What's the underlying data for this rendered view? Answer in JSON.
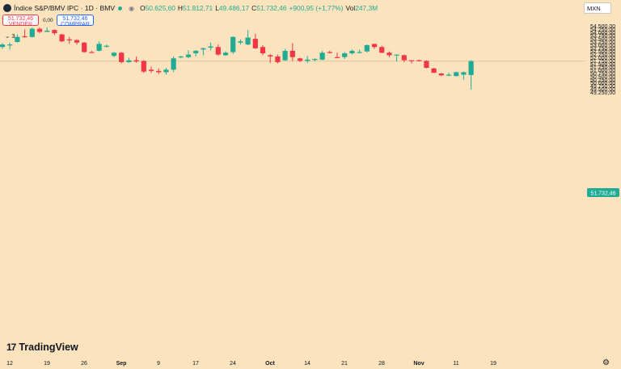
{
  "header": {
    "symbol": "Índice S&P/BMV IPC · 1D · BMV",
    "open_label": "O",
    "open": "50.625,60",
    "high_label": "H",
    "high": "51.812,71",
    "low_label": "L",
    "low": "49.486,17",
    "close_label": "C",
    "close": "51.732,46",
    "change": "+900,95 (+1,77%)",
    "volume_label": "Vol",
    "volume": "247,3M"
  },
  "trade": {
    "sell_price": "51.732,46",
    "sell_label": "VENDER",
    "spread": "0,00",
    "buy_price": "51.732,46",
    "buy_label": "COMPRAR"
  },
  "indicators": {
    "toggle": "⌄ 3"
  },
  "currency": "MXN",
  "brand": "TradingView",
  "colors": {
    "up": "#22ab94",
    "down": "#f23645",
    "background": "#fae3bd"
  },
  "chart_data": {
    "type": "candlestick",
    "y_range": [
      49200,
      54800
    ],
    "y_ticks": [
      "54.500,00",
      "54.250,00",
      "54.000,00",
      "53.750,00",
      "53.500,00",
      "53.250,00",
      "53.000,00",
      "52.750,00",
      "52.500,00",
      "52.250,00",
      "52.000,00",
      "51.750,00",
      "51.500,00",
      "51.250,00",
      "51.000,00",
      "50.750,00",
      "50.500,00",
      "50.250,00",
      "50.000,00",
      "49.750,00",
      "49.500,00",
      "49.250,00"
    ],
    "y_tick_values": [
      54500,
      54250,
      54000,
      53750,
      53500,
      53250,
      53000,
      52750,
      52500,
      52250,
      52000,
      51750,
      51500,
      51250,
      51000,
      50750,
      50500,
      50250,
      50000,
      49750,
      49500,
      49250
    ],
    "x_ticks": [
      "12",
      "19",
      "26",
      "Sep",
      "9",
      "17",
      "24",
      "Oct",
      "14",
      "21",
      "28",
      "Nov",
      "11",
      "19"
    ],
    "x_tick_index": [
      0,
      5,
      10,
      15,
      20,
      25,
      30,
      35,
      40,
      45,
      50,
      55,
      60,
      65
    ],
    "x_tick_bold": [
      "Sep",
      "Oct",
      "Nov"
    ],
    "last_price": 51732.46,
    "last_price_label": "51.732,46",
    "candles": [
      {
        "o": 52850,
        "h": 53150,
        "l": 52700,
        "c": 53050
      },
      {
        "o": 53020,
        "h": 53200,
        "l": 52650,
        "c": 53050
      },
      {
        "o": 53250,
        "h": 53850,
        "l": 53200,
        "c": 53650
      },
      {
        "o": 53700,
        "h": 54250,
        "l": 53600,
        "c": 53650
      },
      {
        "o": 53650,
        "h": 54400,
        "l": 53600,
        "c": 54300
      },
      {
        "o": 54300,
        "h": 54400,
        "l": 53950,
        "c": 54050
      },
      {
        "o": 54050,
        "h": 54400,
        "l": 54050,
        "c": 54150
      },
      {
        "o": 54200,
        "h": 54250,
        "l": 53800,
        "c": 53950
      },
      {
        "o": 53850,
        "h": 53900,
        "l": 53250,
        "c": 53300
      },
      {
        "o": 53450,
        "h": 53650,
        "l": 53100,
        "c": 53400
      },
      {
        "o": 53400,
        "h": 53450,
        "l": 53050,
        "c": 53200
      },
      {
        "o": 53200,
        "h": 53250,
        "l": 52400,
        "c": 52450
      },
      {
        "o": 52450,
        "h": 52550,
        "l": 52400,
        "c": 52400
      },
      {
        "o": 52550,
        "h": 53300,
        "l": 52500,
        "c": 53100
      },
      {
        "o": 52950,
        "h": 53050,
        "l": 52800,
        "c": 52950
      },
      {
        "o": 52150,
        "h": 52450,
        "l": 52050,
        "c": 52400
      },
      {
        "o": 52400,
        "h": 52450,
        "l": 51550,
        "c": 51650
      },
      {
        "o": 51650,
        "h": 52000,
        "l": 51600,
        "c": 51800
      },
      {
        "o": 51800,
        "h": 52100,
        "l": 51600,
        "c": 51700
      },
      {
        "o": 51750,
        "h": 51800,
        "l": 50800,
        "c": 50900
      },
      {
        "o": 51050,
        "h": 51300,
        "l": 50800,
        "c": 50950
      },
      {
        "o": 50950,
        "h": 51150,
        "l": 50700,
        "c": 50850
      },
      {
        "o": 50850,
        "h": 51200,
        "l": 50650,
        "c": 51050
      },
      {
        "o": 51050,
        "h": 52100,
        "l": 50850,
        "c": 51950
      },
      {
        "o": 52050,
        "h": 52150,
        "l": 51950,
        "c": 52100
      },
      {
        "o": 52050,
        "h": 52600,
        "l": 51950,
        "c": 52250
      },
      {
        "o": 52350,
        "h": 52600,
        "l": 52100,
        "c": 52550
      },
      {
        "o": 52650,
        "h": 52800,
        "l": 52200,
        "c": 52750
      },
      {
        "o": 52800,
        "h": 53200,
        "l": 52600,
        "c": 52900
      },
      {
        "o": 52850,
        "h": 53050,
        "l": 52150,
        "c": 52250
      },
      {
        "o": 52200,
        "h": 52500,
        "l": 52150,
        "c": 52400
      },
      {
        "o": 52450,
        "h": 53700,
        "l": 52300,
        "c": 53650
      },
      {
        "o": 53200,
        "h": 53450,
        "l": 53050,
        "c": 53300
      },
      {
        "o": 53050,
        "h": 54200,
        "l": 53000,
        "c": 53600
      },
      {
        "o": 53500,
        "h": 53900,
        "l": 52700,
        "c": 52750
      },
      {
        "o": 52850,
        "h": 53000,
        "l": 52200,
        "c": 52350
      },
      {
        "o": 52200,
        "h": 52300,
        "l": 51600,
        "c": 52100
      },
      {
        "o": 52100,
        "h": 52250,
        "l": 51550,
        "c": 51650
      },
      {
        "o": 51800,
        "h": 52700,
        "l": 51750,
        "c": 52550
      },
      {
        "o": 52550,
        "h": 53150,
        "l": 51750,
        "c": 52050
      },
      {
        "o": 51950,
        "h": 52000,
        "l": 51650,
        "c": 51750
      },
      {
        "o": 51750,
        "h": 52150,
        "l": 51600,
        "c": 51850
      },
      {
        "o": 51850,
        "h": 51950,
        "l": 51700,
        "c": 51900
      },
      {
        "o": 51850,
        "h": 52550,
        "l": 51800,
        "c": 52400
      },
      {
        "o": 52450,
        "h": 52550,
        "l": 52350,
        "c": 52400
      },
      {
        "o": 52050,
        "h": 52400,
        "l": 52000,
        "c": 52000
      },
      {
        "o": 52050,
        "h": 52450,
        "l": 51900,
        "c": 52350
      },
      {
        "o": 52350,
        "h": 52650,
        "l": 52250,
        "c": 52550
      },
      {
        "o": 52400,
        "h": 52650,
        "l": 52350,
        "c": 52450
      },
      {
        "o": 52500,
        "h": 53050,
        "l": 52400,
        "c": 53000
      },
      {
        "o": 53100,
        "h": 53100,
        "l": 52700,
        "c": 52850
      },
      {
        "o": 52850,
        "h": 52950,
        "l": 52350,
        "c": 52400
      },
      {
        "o": 52400,
        "h": 52500,
        "l": 52050,
        "c": 52200
      },
      {
        "o": 52200,
        "h": 52250,
        "l": 51700,
        "c": 52250
      },
      {
        "o": 52200,
        "h": 52250,
        "l": 51650,
        "c": 51800
      },
      {
        "o": 51800,
        "h": 51800,
        "l": 51550,
        "c": 51750
      },
      {
        "o": 51800,
        "h": 51850,
        "l": 51700,
        "c": 51750
      },
      {
        "o": 51750,
        "h": 51800,
        "l": 51150,
        "c": 51200
      },
      {
        "o": 51150,
        "h": 51200,
        "l": 50800,
        "c": 50800
      },
      {
        "o": 50750,
        "h": 50800,
        "l": 50550,
        "c": 50600
      },
      {
        "o": 50600,
        "h": 50800,
        "l": 50550,
        "c": 50650
      },
      {
        "o": 50550,
        "h": 50900,
        "l": 50500,
        "c": 50850
      },
      {
        "o": 50650,
        "h": 50900,
        "l": 50250,
        "c": 50850
      },
      {
        "o": 50625.6,
        "h": 51812.71,
        "l": 49486.17,
        "c": 51732.46
      }
    ]
  }
}
